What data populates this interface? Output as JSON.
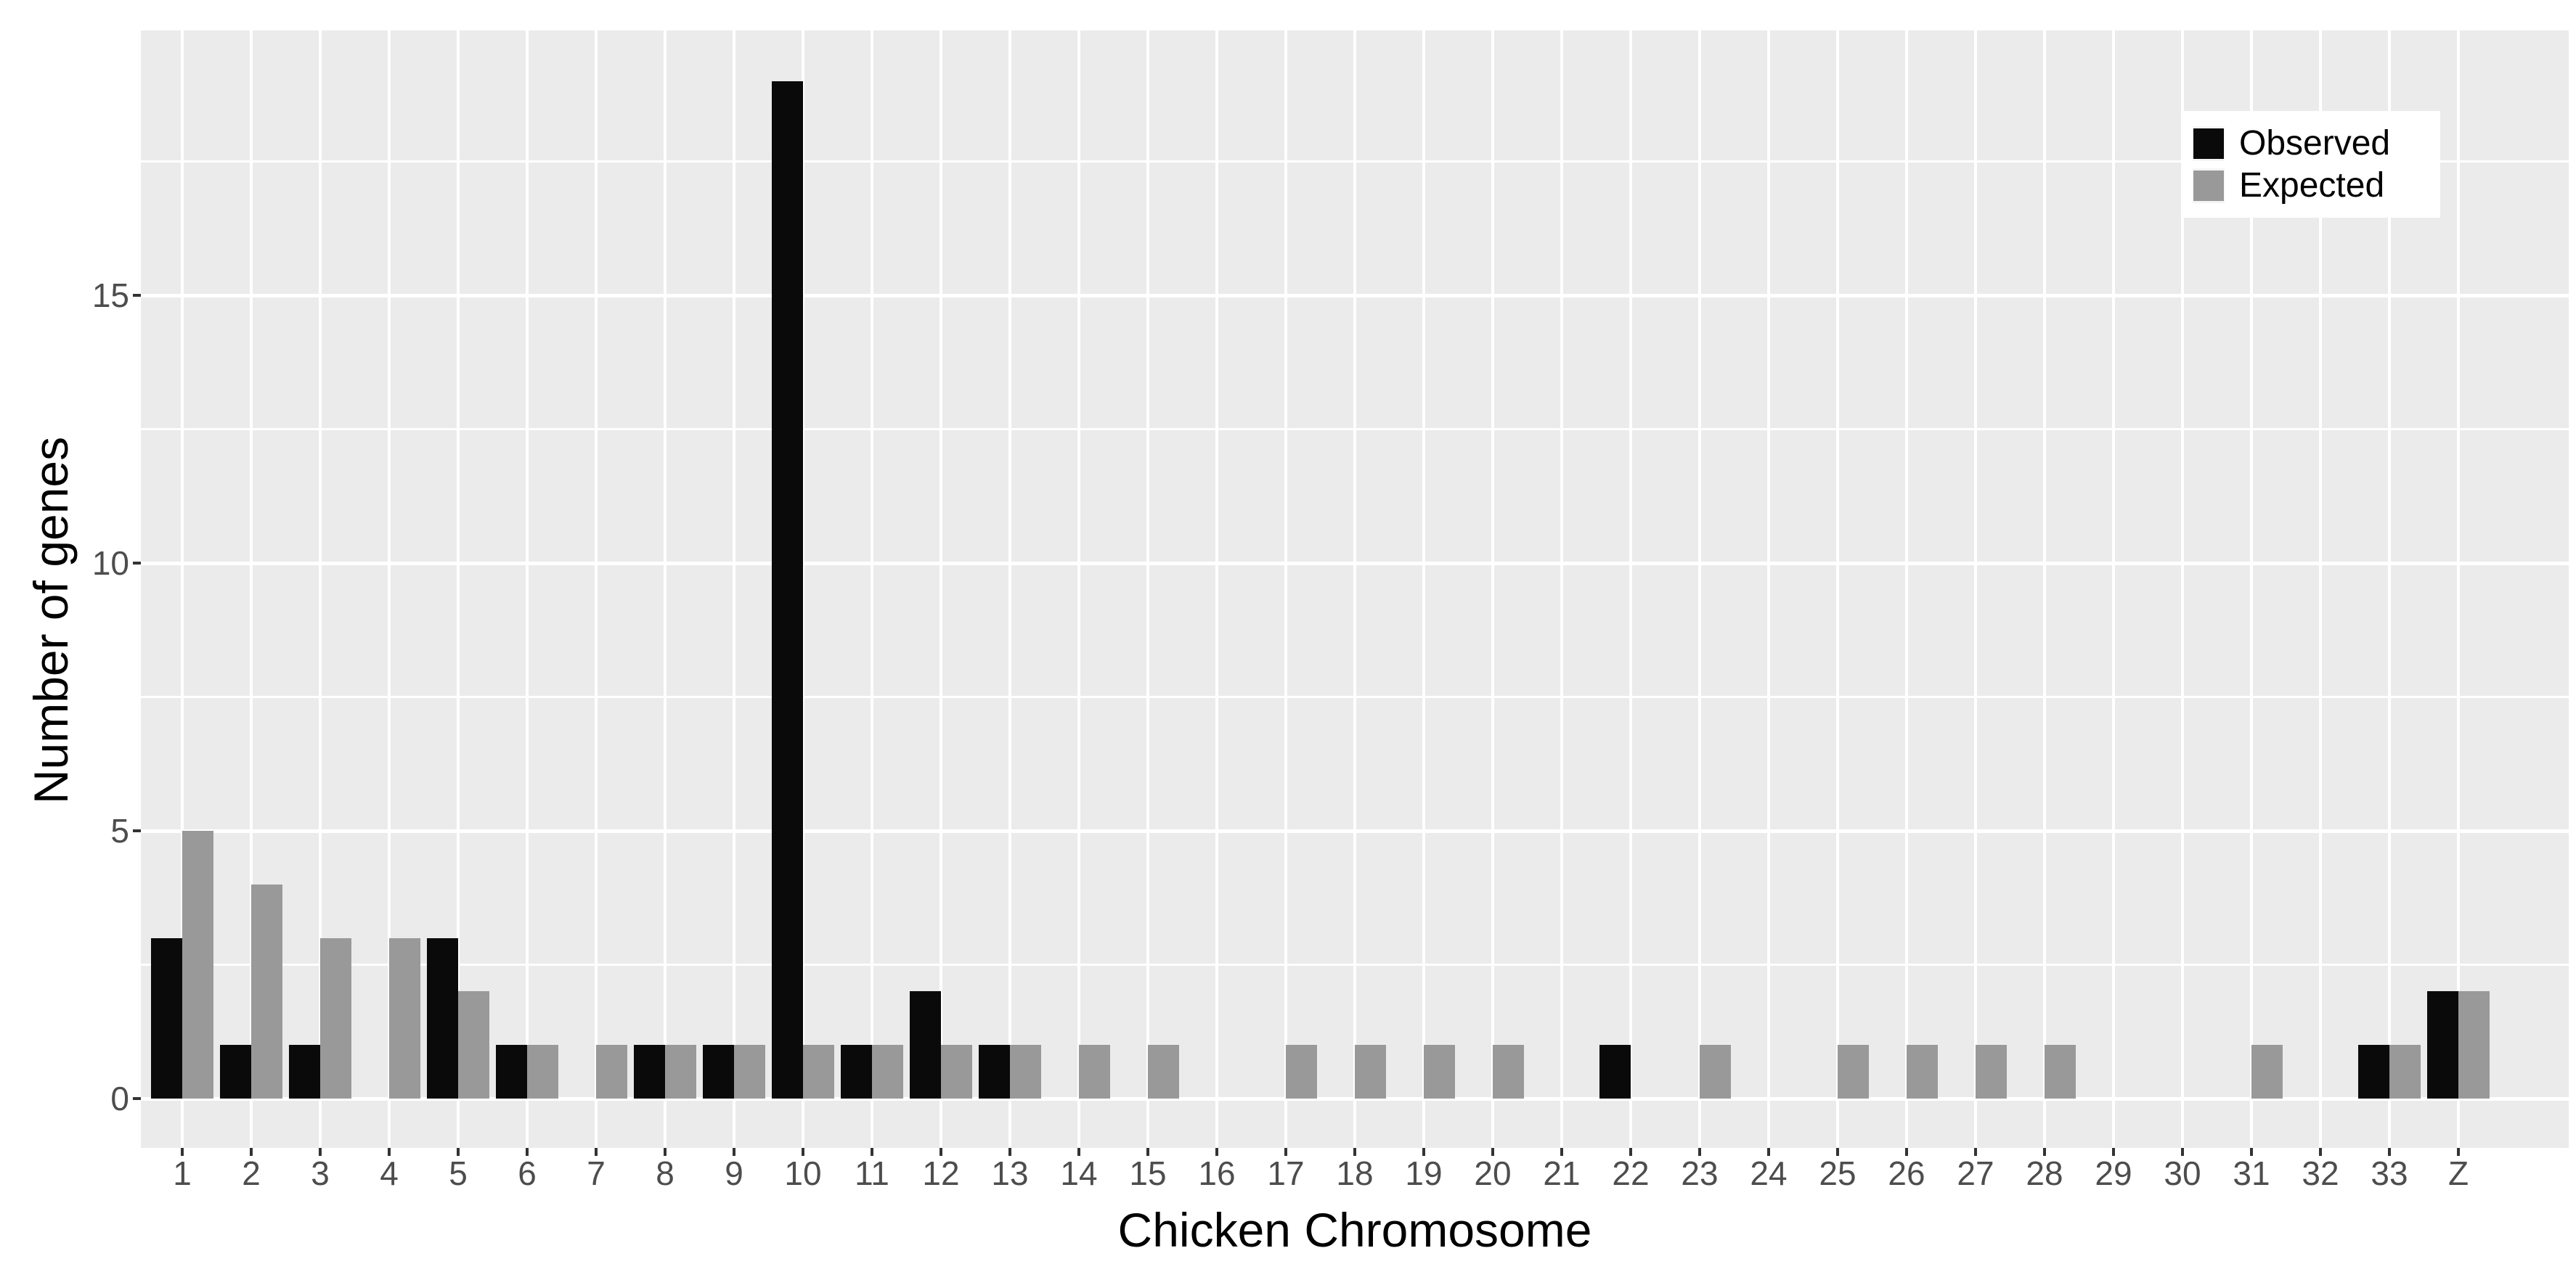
{
  "chart_data": {
    "type": "bar",
    "title": "",
    "xlabel": "Chicken Chromosome",
    "ylabel": "Number of genes",
    "categories": [
      "1",
      "2",
      "3",
      "4",
      "5",
      "6",
      "7",
      "8",
      "9",
      "10",
      "11",
      "12",
      "13",
      "14",
      "15",
      "16",
      "17",
      "18",
      "19",
      "20",
      "21",
      "22",
      "23",
      "24",
      "25",
      "26",
      "27",
      "28",
      "29",
      "30",
      "31",
      "32",
      "33",
      "Z"
    ],
    "series": [
      {
        "name": "Observed",
        "color": "#0a0a0a",
        "values": [
          3,
          1,
          1,
          0,
          3,
          1,
          0,
          1,
          1,
          19,
          1,
          2,
          1,
          0,
          0,
          0,
          0,
          0,
          0,
          0,
          0,
          1,
          0,
          0,
          0,
          0,
          0,
          0,
          0,
          0,
          0,
          0,
          1,
          2
        ]
      },
      {
        "name": "Expected",
        "color": "#999999",
        "values": [
          5,
          4,
          3,
          3,
          2,
          1,
          1,
          1,
          1,
          1,
          1,
          1,
          1,
          1,
          1,
          0,
          1,
          1,
          1,
          1,
          0,
          0,
          1,
          0,
          1,
          1,
          1,
          1,
          0,
          0,
          1,
          0,
          1,
          2
        ]
      }
    ],
    "y_ticks": [
      0,
      5,
      10,
      15
    ],
    "y_minor_ticks": [
      2.5,
      7.5,
      12.5,
      17.5
    ],
    "ylim": [
      0,
      19.95
    ],
    "grid": true,
    "legend_position": "top-right",
    "style": {
      "panel_background": "#ebebeb",
      "grid_color": "#ffffff",
      "tick_mark_color": "#333333",
      "tick_label_color": "#4d4d4d",
      "axis_title_color": "#000000",
      "legend_background": "#ffffff",
      "legend_key_background": "#f5f5f5"
    }
  }
}
